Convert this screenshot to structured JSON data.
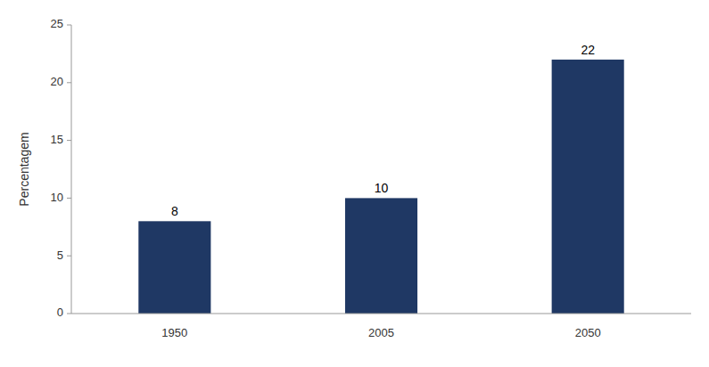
{
  "chart_data": {
    "type": "bar",
    "categories": [
      "1950",
      "2005",
      "2050"
    ],
    "values": [
      8,
      10,
      22
    ],
    "color": "#1F3864",
    "ylabel": "Percentagem",
    "ylim": [
      0,
      25
    ],
    "yticks": [
      0,
      5,
      10,
      15,
      20,
      25
    ],
    "grid": false,
    "data_labels": true
  }
}
